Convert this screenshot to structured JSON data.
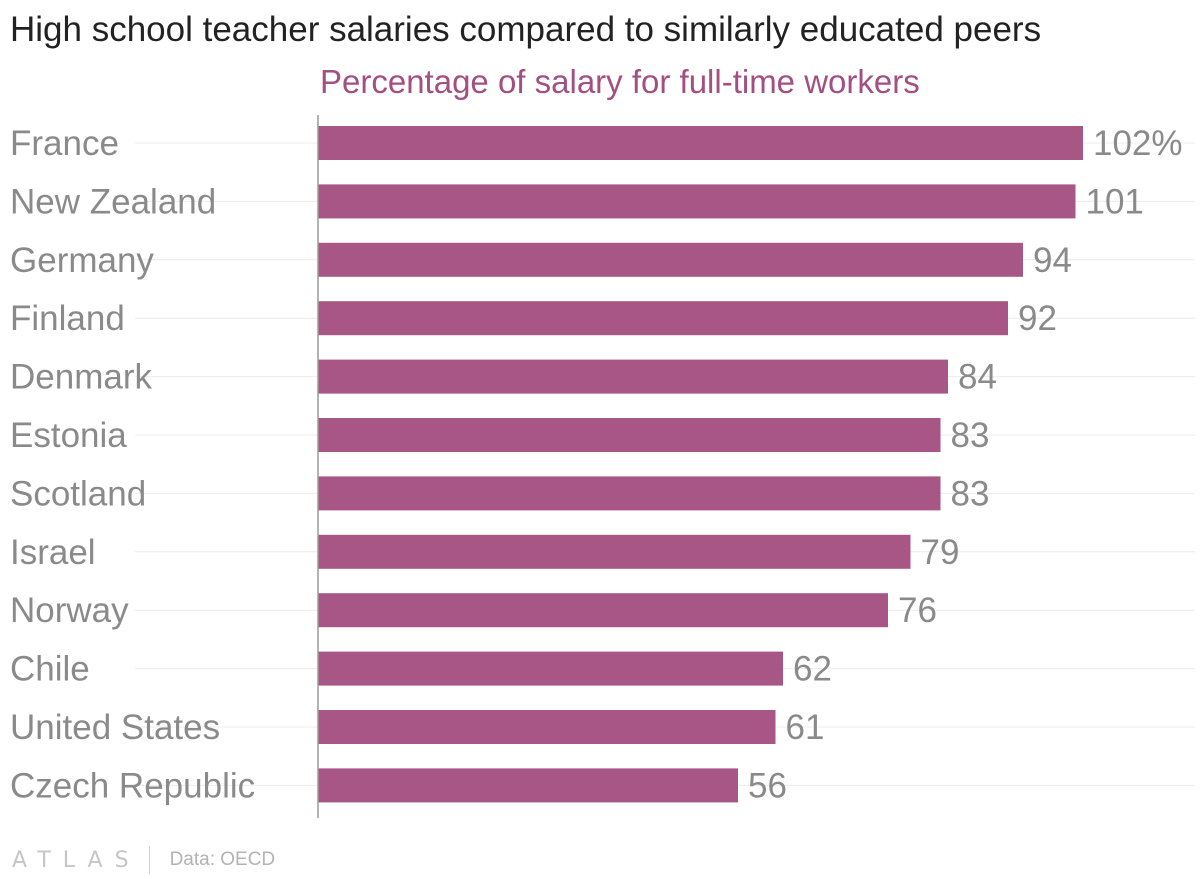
{
  "chart_data": {
    "type": "bar",
    "orientation": "horizontal",
    "title": "High school teacher salaries compared to similarly educated peers",
    "subtitle": "Percentage of salary for full-time workers",
    "categories": [
      "France",
      "New Zealand",
      "Germany",
      "Finland",
      "Denmark",
      "Estonia",
      "Scotland",
      "Israel",
      "Norway",
      "Chile",
      "United States",
      "Czech Republic"
    ],
    "values": [
      102,
      101,
      94,
      92,
      84,
      83,
      83,
      79,
      76,
      62,
      61,
      56
    ],
    "value_labels": [
      "102%",
      "101",
      "94",
      "92",
      "84",
      "83",
      "83",
      "79",
      "76",
      "62",
      "61",
      "56"
    ],
    "xlim": [
      0,
      102
    ],
    "grid": true,
    "colors": {
      "bar": "#a85686",
      "subtitle": "#a34f82",
      "labels": "#8a8a8a"
    }
  },
  "footer": {
    "logo": "ATLAS",
    "source": "Data: OECD"
  }
}
